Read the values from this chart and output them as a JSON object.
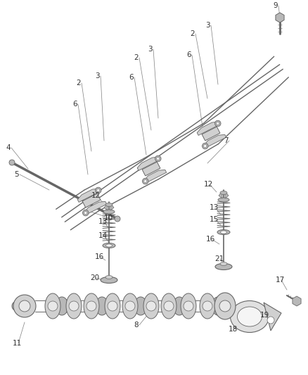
{
  "bg_color": "#ffffff",
  "fig_width": 4.38,
  "fig_height": 5.33,
  "dpi": 100,
  "part_color": "#666666",
  "part_fill": "#d0d0d0",
  "part_fill2": "#b8b8b8",
  "part_fill3": "#e8e8e8",
  "leader_color": "#888888",
  "text_color": "#333333",
  "text_size": 7.5,
  "lw_main": 0.9,
  "lw_thin": 0.6
}
